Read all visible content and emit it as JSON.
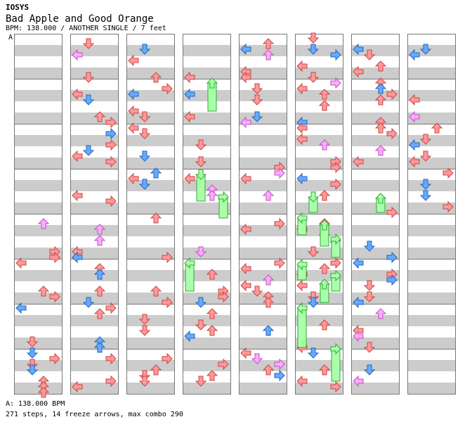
{
  "header": {
    "brand": "IOSYS",
    "song_title": "Bad Apple and Good Orange",
    "meta_line": "BPM: 138.000 / ANOTHER SINGLE / 7 feet"
  },
  "chart": {
    "bpm_marker": "A",
    "num_columns": 8,
    "measures_per_column": 8,
    "lane_colors": {
      "stripe": "#cccccc",
      "red_arrow": "#ff9999",
      "blue_arrow": "#66aaff",
      "pink_arrow": "#ffaaff",
      "freeze": "#aaffaa"
    }
  },
  "footer": {
    "bpm_legend": "A: 138.000 BPM",
    "summary": "271 steps, 14 freeze arrows, max combo 290"
  }
}
